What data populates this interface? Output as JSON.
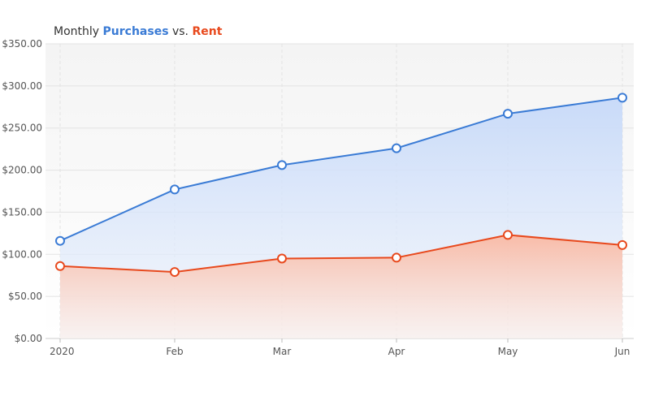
{
  "chart_data": {
    "type": "area",
    "title_parts": {
      "prefix": "Monthly ",
      "series1": "Purchases",
      "middle": " vs. ",
      "series2": "Rent"
    },
    "categories": [
      "2020",
      "Feb",
      "Mar",
      "Apr",
      "May",
      "Jun"
    ],
    "series": [
      {
        "name": "Purchases",
        "color": "#3a7bd5",
        "values": [
          116,
          177,
          206,
          226,
          267,
          286
        ]
      },
      {
        "name": "Rent",
        "color": "#e8491d",
        "values": [
          86,
          79,
          95,
          96,
          123,
          111
        ]
      }
    ],
    "y_ticks": [
      "$0.00",
      "$50.00",
      "$100.00",
      "$150.00",
      "$200.00",
      "$250.00",
      "$300.00",
      "$350.00"
    ],
    "ylim": [
      0,
      350
    ],
    "grid": true
  }
}
